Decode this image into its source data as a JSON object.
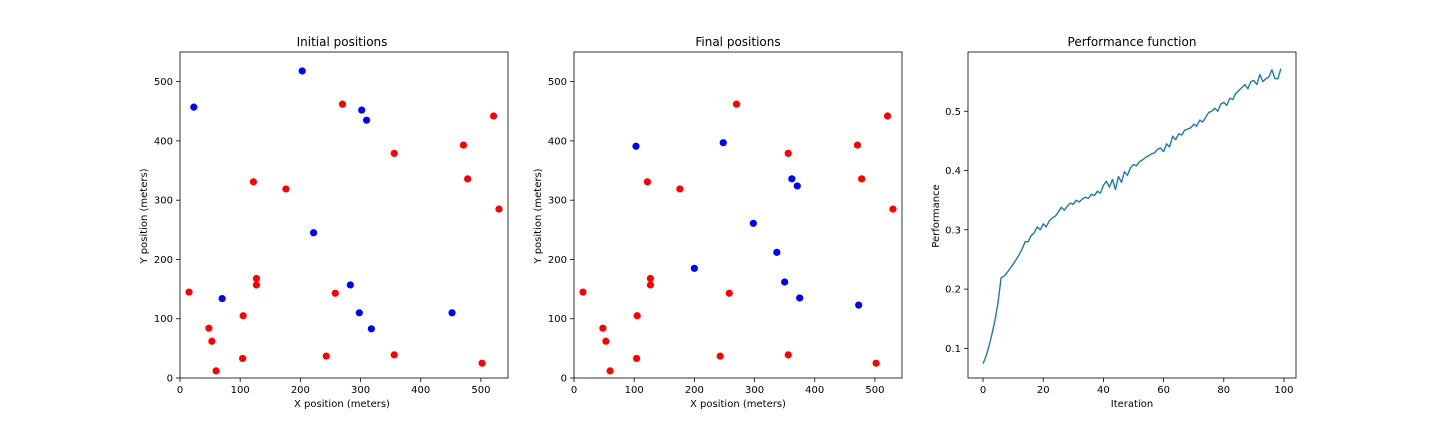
{
  "colors": {
    "red": "#ff0000",
    "blue": "#0000ff",
    "line": "#1f77b4"
  },
  "charts": [
    {
      "type": "scatter",
      "title": "Initial positions",
      "xlabel": "X position (meters)",
      "ylabel": "Y position (meters)",
      "xlim": [
        0,
        545
      ],
      "ylim": [
        0,
        550
      ],
      "xticks": [
        0,
        100,
        200,
        300,
        400,
        500
      ],
      "yticks": [
        0,
        100,
        200,
        300,
        400,
        500
      ],
      "series": [
        {
          "color": "red",
          "points": [
            [
              15,
              145
            ],
            [
              48,
              84
            ],
            [
              53,
              62
            ],
            [
              60,
              12
            ],
            [
              105,
              105
            ],
            [
              104,
              33
            ],
            [
              122,
              331
            ],
            [
              127,
              168
            ],
            [
              127,
              157
            ],
            [
              176,
              319
            ],
            [
              243,
              37
            ],
            [
              258,
              143
            ],
            [
              270,
              462
            ],
            [
              356,
              379
            ],
            [
              356,
              39
            ],
            [
              471,
              393
            ],
            [
              478,
              336
            ],
            [
              502,
              25
            ],
            [
              521,
              442
            ],
            [
              530,
              285
            ]
          ]
        },
        {
          "color": "blue",
          "points": [
            [
              23,
              457
            ],
            [
              70,
              134
            ],
            [
              203,
              518
            ],
            [
              222,
              245
            ],
            [
              283,
              157
            ],
            [
              298,
              110
            ],
            [
              302,
              452
            ],
            [
              310,
              435
            ],
            [
              318,
              83
            ],
            [
              452,
              110
            ]
          ]
        }
      ]
    },
    {
      "type": "scatter",
      "title": "Final positions",
      "xlabel": "X position (meters)",
      "ylabel": "Y position (meters)",
      "xlim": [
        0,
        545
      ],
      "ylim": [
        0,
        550
      ],
      "xticks": [
        0,
        100,
        200,
        300,
        400,
        500
      ],
      "yticks": [
        0,
        100,
        200,
        300,
        400,
        500
      ],
      "series": [
        {
          "color": "red",
          "points": [
            [
              15,
              145
            ],
            [
              48,
              84
            ],
            [
              53,
              62
            ],
            [
              60,
              12
            ],
            [
              105,
              105
            ],
            [
              104,
              33
            ],
            [
              122,
              331
            ],
            [
              127,
              168
            ],
            [
              127,
              157
            ],
            [
              176,
              319
            ],
            [
              243,
              37
            ],
            [
              258,
              143
            ],
            [
              270,
              462
            ],
            [
              356,
              379
            ],
            [
              356,
              39
            ],
            [
              471,
              393
            ],
            [
              478,
              336
            ],
            [
              502,
              25
            ],
            [
              521,
              442
            ],
            [
              530,
              285
            ]
          ]
        },
        {
          "color": "blue",
          "points": [
            [
              103,
              391
            ],
            [
              200,
              185
            ],
            [
              248,
              397
            ],
            [
              298,
              261
            ],
            [
              337,
              212
            ],
            [
              350,
              162
            ],
            [
              362,
              336
            ],
            [
              371,
              324
            ],
            [
              375,
              135
            ],
            [
              473,
              123
            ]
          ]
        }
      ]
    },
    {
      "type": "line",
      "title": "Performance function",
      "xlabel": "Iteration",
      "ylabel": "Performance",
      "xlim": [
        -5,
        104
      ],
      "ylim": [
        0.05,
        0.6
      ],
      "xticks": [
        0,
        20,
        40,
        60,
        80,
        100
      ],
      "yticks": [
        0.1,
        0.2,
        0.3,
        0.4,
        0.5
      ],
      "series": [
        {
          "color": "line",
          "values": [
            0.074,
            0.087,
            0.104,
            0.125,
            0.148,
            0.178,
            0.219,
            0.222,
            0.228,
            0.235,
            0.242,
            0.25,
            0.258,
            0.268,
            0.28,
            0.28,
            0.29,
            0.295,
            0.305,
            0.3,
            0.31,
            0.305,
            0.315,
            0.32,
            0.323,
            0.33,
            0.338,
            0.333,
            0.34,
            0.345,
            0.343,
            0.35,
            0.347,
            0.352,
            0.355,
            0.353,
            0.36,
            0.358,
            0.365,
            0.362,
            0.375,
            0.382,
            0.372,
            0.385,
            0.368,
            0.39,
            0.38,
            0.398,
            0.392,
            0.405,
            0.41,
            0.408,
            0.415,
            0.418,
            0.422,
            0.425,
            0.428,
            0.43,
            0.436,
            0.438,
            0.432,
            0.445,
            0.44,
            0.458,
            0.452,
            0.462,
            0.46,
            0.468,
            0.47,
            0.472,
            0.478,
            0.475,
            0.485,
            0.482,
            0.49,
            0.498,
            0.5,
            0.505,
            0.5,
            0.512,
            0.515,
            0.51,
            0.522,
            0.52,
            0.53,
            0.535,
            0.54,
            0.545,
            0.538,
            0.55,
            0.552,
            0.545,
            0.562,
            0.55,
            0.555,
            0.558,
            0.57,
            0.555,
            0.555,
            0.572
          ]
        }
      ]
    }
  ]
}
